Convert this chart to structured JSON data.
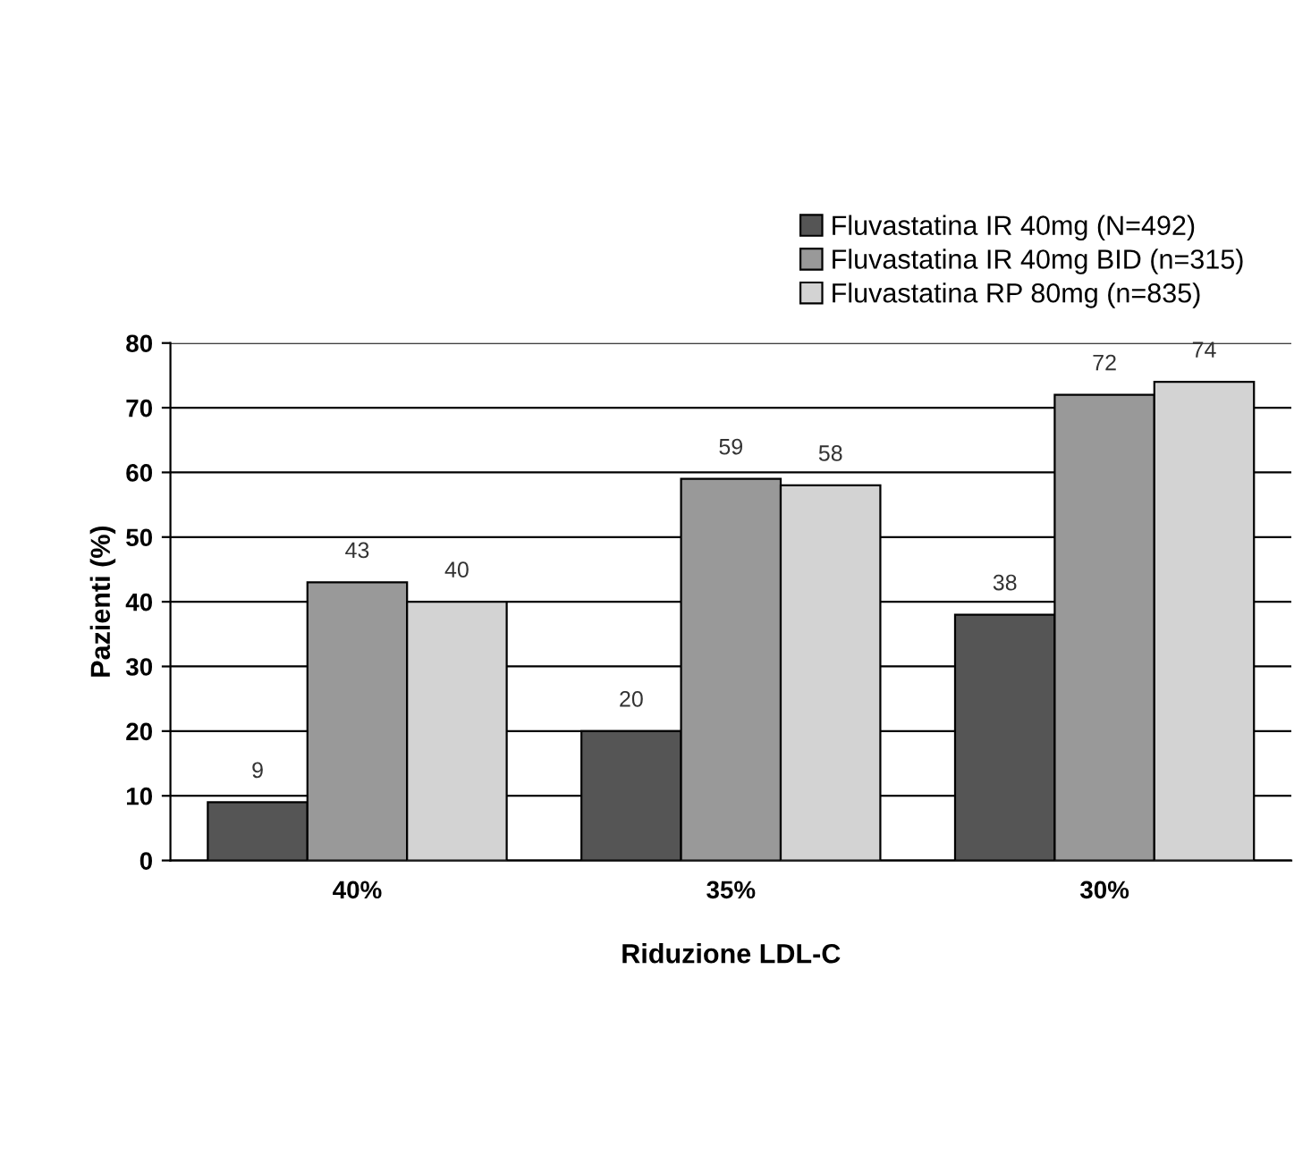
{
  "chart_data": {
    "type": "bar",
    "xlabel": "Riduzione LDL-C",
    "ylabel": "Pazienti (%)",
    "categories": [
      "40%",
      "35%",
      "30%"
    ],
    "series": [
      {
        "name": "Fluvastatina IR 40mg (N=492)",
        "color": "#555555",
        "values": [
          9,
          20,
          38
        ]
      },
      {
        "name": "Fluvastatina IR 40mg BID (n=315)",
        "color": "#999999",
        "values": [
          43,
          59,
          72
        ]
      },
      {
        "name": "Fluvastatina RP 80mg (n=835)",
        "color": "#d3d3d3",
        "values": [
          40,
          58,
          74
        ]
      }
    ],
    "ylim": [
      0,
      80
    ],
    "yticks": [
      0,
      10,
      20,
      30,
      40,
      50,
      60,
      70,
      80
    ],
    "grid": "y",
    "legend": "top right",
    "data_labels": true
  }
}
